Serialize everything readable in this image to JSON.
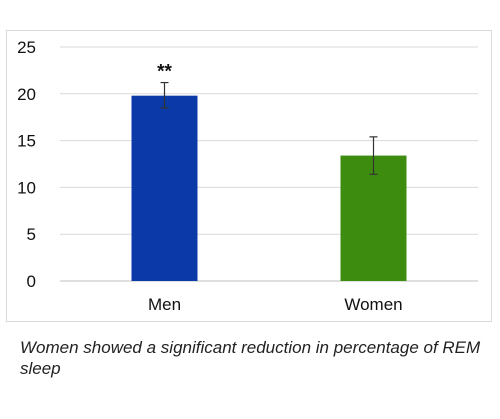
{
  "chart_data": {
    "type": "bar",
    "categories": [
      "Men",
      "Women"
    ],
    "values": [
      19.8,
      13.4
    ],
    "error_low": [
      18.5,
      11.4
    ],
    "error_high": [
      21.2,
      15.4
    ],
    "bar_colors": [
      "#0b3aa8",
      "#3d8c0f"
    ],
    "annotations": [
      "**",
      ""
    ],
    "ylim": [
      0,
      25
    ],
    "yticks": [
      0,
      5,
      10,
      15,
      20,
      25
    ],
    "grid": true,
    "title": "",
    "xlabel": "",
    "ylabel": ""
  },
  "caption": "Women showed a significant reduction in percentage of REM sleep"
}
